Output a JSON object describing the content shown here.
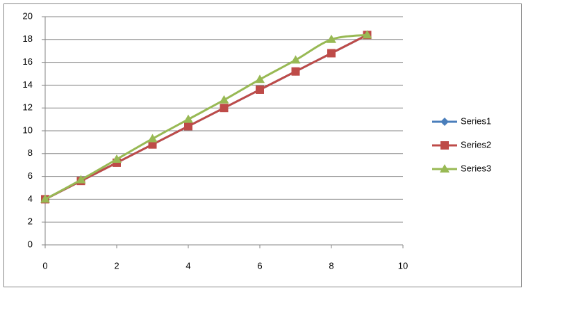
{
  "chart_data": {
    "type": "scatter-smooth",
    "x": [
      0,
      1,
      2,
      3,
      4,
      5,
      6,
      7,
      8,
      9
    ],
    "series": [
      {
        "name": "Series1",
        "color": "#4a7ebb",
        "marker": "diamond",
        "values": [
          4,
          5.6,
          7.2,
          8.8,
          10.4,
          12,
          13.6,
          15.2,
          16.8,
          18.4
        ]
      },
      {
        "name": "Series2",
        "color": "#be4b48",
        "marker": "square",
        "values": [
          4,
          5.6,
          7.2,
          8.8,
          10.4,
          12,
          13.6,
          15.2,
          16.8,
          18.4
        ]
      },
      {
        "name": "Series3",
        "color": "#98b954",
        "marker": "triangle",
        "values": [
          4,
          5.7,
          7.5,
          9.3,
          11,
          12.7,
          14.5,
          16.2,
          18,
          18.4
        ]
      }
    ],
    "xlim": [
      0,
      10
    ],
    "xticks": [
      0,
      2,
      4,
      6,
      8,
      10
    ],
    "ylim": [
      0,
      20
    ],
    "yticks": [
      0,
      2,
      4,
      6,
      8,
      10,
      12,
      14,
      16,
      18,
      20
    ],
    "grid": true,
    "legend": "right"
  }
}
